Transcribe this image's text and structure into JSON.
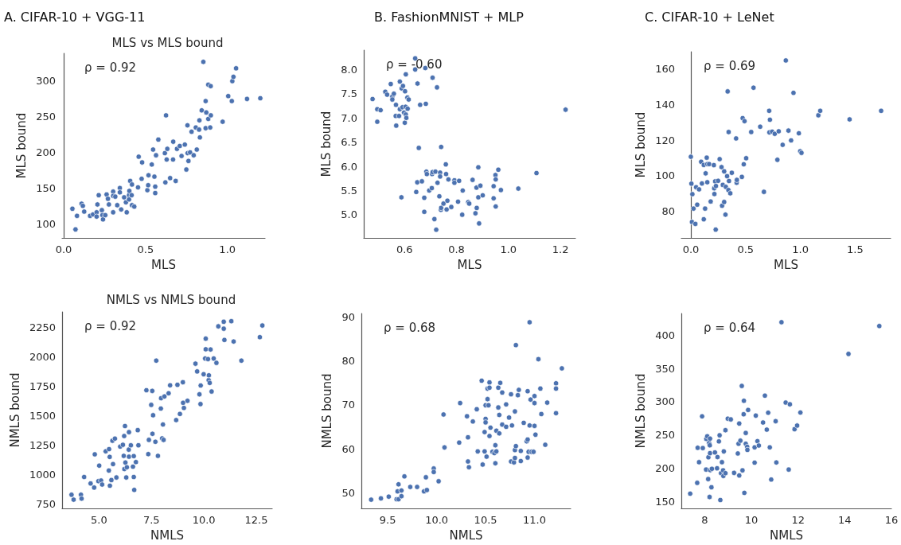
{
  "chart_data": [
    {
      "type": "scatter",
      "title": "A. CIFAR-10 + VGG-11",
      "subtitle": "MLS vs MLS bound",
      "xlabel": "MLS",
      "ylabel": "MLS bound",
      "annotations": [
        "ρ = 0.92"
      ],
      "marker": "circle",
      "xlim": [
        -0.01,
        1.23
      ],
      "xticks": [
        {
          "value": 0,
          "label": "0.0"
        },
        0.5,
        {
          "value": 1,
          "label": "1.0"
        }
      ],
      "ylim": [
        80,
        339
      ],
      "yticks": [
        100,
        150,
        200,
        250,
        300
      ],
      "x": [
        0.053,
        0.072,
        0.081,
        0.109,
        0.117,
        0.125,
        0.161,
        0.179,
        0.201,
        0.201,
        0.206,
        0.214,
        0.233,
        0.236,
        0.24,
        0.254,
        0.262,
        0.27,
        0.276,
        0.302,
        0.302,
        0.302,
        0.315,
        0.327,
        0.343,
        0.343,
        0.351,
        0.369,
        0.38,
        0.385,
        0.399,
        0.399,
        0.401,
        0.406,
        0.415,
        0.417,
        0.417,
        0.431,
        0.454,
        0.458,
        0.476,
        0.479,
        0.511,
        0.516,
        0.518,
        0.538,
        0.546,
        0.554,
        0.559,
        0.559,
        0.564,
        0.578,
        0.618,
        0.621,
        0.625,
        0.629,
        0.633,
        0.65,
        0.668,
        0.669,
        0.684,
        0.692,
        0.709,
        0.72,
        0.74,
        0.749,
        0.757,
        0.756,
        0.762,
        0.772,
        0.781,
        0.794,
        0.807,
        0.813,
        0.827,
        0.829,
        0.832,
        0.843,
        0.853,
        0.867,
        0.867,
        0.871,
        0.883,
        0.883,
        0.895,
        0.898,
        0.899,
        0.971,
        1.005,
        1.027,
        1.03,
        1.037,
        1.053,
        1.12,
        1.201
      ],
      "series": [
        {
          "color": "#4c72b0",
          "values": [
            121,
            92,
            111,
            128,
            125,
            117,
            111,
            113,
            116,
            110,
            127,
            140,
            119,
            112,
            106,
            112,
            141,
            135,
            127,
            145,
            139,
            116,
            138,
            126,
            150,
            144,
            120,
            137,
            130,
            116,
            140,
            134,
            146,
            160,
            140,
            155,
            126,
            124,
            151,
            194,
            163,
            186,
            147,
            154,
            168,
            183,
            204,
            166,
            152,
            143,
            196,
            218,
            199,
            158,
            252,
            190,
            205,
            164,
            190,
            215,
            160,
            205,
            209,
            195,
            211,
            176,
            199,
            238,
            188,
            200,
            229,
            196,
            235,
            204,
            232,
            245,
            221,
            259,
            327,
            272,
            234,
            256,
            247,
            295,
            235,
            293,
            252,
            243,
            279,
            272,
            300,
            306,
            318,
            275,
            276
          ]
        }
      ]
    },
    {
      "type": "scatter",
      "title": "B. FashionMNIST + MLP",
      "xlabel": "MLS",
      "ylabel": "MLS bound",
      "annotations": [
        "ρ = -0.60"
      ],
      "marker": "circle",
      "xlim": [
        0.443,
        1.258
      ],
      "xticks": [
        0.6,
        0.8,
        {
          "value": 1,
          "label": "1.0"
        },
        1.2
      ],
      "ylim": [
        4.52,
        8.4
      ],
      "yticks": [
        {
          "value": 5,
          "label": "5.0"
        },
        5.5,
        {
          "value": 6,
          "label": "6.0"
        },
        6.5,
        {
          "value": 7,
          "label": "7.0"
        },
        7.5,
        {
          "value": 8,
          "label": "8.0"
        }
      ],
      "x": [
        0.477,
        0.495,
        0.495,
        0.508,
        0.526,
        0.533,
        0.547,
        0.553,
        0.553,
        0.559,
        0.566,
        0.567,
        0.568,
        0.579,
        0.582,
        0.582,
        0.589,
        0.592,
        0.594,
        0.598,
        0.602,
        0.604,
        0.605,
        0.605,
        0.601,
        0.607,
        0.611,
        0.616,
        0.612,
        0.588,
        0.641,
        0.641,
        0.65,
        0.655,
        0.66,
        0.68,
        0.682,
        0.708,
        0.725,
        0.741,
        0.645,
        0.649,
        0.667,
        0.676,
        0.676,
        0.684,
        0.686,
        0.695,
        0.705,
        0.706,
        0.708,
        0.715,
        0.719,
        0.722,
        0.727,
        0.734,
        0.737,
        0.737,
        0.74,
        0.741,
        0.75,
        0.759,
        0.76,
        0.762,
        0.765,
        0.769,
        0.78,
        0.792,
        0.792,
        0.806,
        0.81,
        0.822,
        0.824,
        0.845,
        0.849,
        0.862,
        0.873,
        0.877,
        0.878,
        0.884,
        0.884,
        0.887,
        0.892,
        0.901,
        0.943,
        0.943,
        0.95,
        0.951,
        0.951,
        0.961,
        0.971,
        1.038,
        1.108,
        1.22
      ],
      "series": [
        {
          "color": "#4c72b0",
          "values": [
            7.39,
            7.18,
            6.92,
            7.16,
            7.54,
            7.48,
            7.7,
            7.44,
            7.38,
            7.5,
            7.04,
            7.27,
            6.84,
            7.04,
            7.75,
            7.18,
            7.61,
            7.22,
            7.66,
            7.11,
            7.55,
            7.23,
            7.07,
            7.9,
            6.9,
            7.0,
            7.42,
            7.38,
            7.19,
            5.36,
            8.23,
            8.0,
            7.71,
            6.38,
            7.27,
            8.03,
            7.29,
            7.83,
            7.63,
            6.4,
            5.47,
            5.67,
            5.69,
            5.35,
            5.06,
            5.89,
            5.84,
            5.5,
            5.55,
            5.84,
            5.88,
            4.91,
            5.89,
            4.69,
            5.66,
            5.38,
            5.87,
            5.79,
            5.1,
            5.14,
            5.23,
            6.04,
            5.84,
            5.11,
            5.29,
            5.73,
            5.16,
            5.71,
            5.66,
            5.27,
            5.7,
            5.0,
            5.5,
            5.26,
            5.23,
            5.72,
            5.03,
            5.56,
            5.14,
            5.98,
            5.36,
            4.82,
            5.6,
            5.4,
            5.59,
            5.34,
            5.82,
            5.73,
            5.17,
            5.93,
            5.51,
            5.54,
            5.86,
            7.17
          ]
        }
      ]
    },
    {
      "type": "scatter",
      "title": "C. CIFAR-10 + LeNet",
      "xlabel": "MLS",
      "ylabel": "MLS bound",
      "annotations": [
        "ρ = 0.69"
      ],
      "marker": "circle",
      "xlim": [
        -0.087,
        1.824
      ],
      "xticks": [
        {
          "value": 0,
          "label": "0.0"
        },
        0.5,
        {
          "value": 1,
          "label": "1.0"
        },
        1.5
      ],
      "ylim": [
        65,
        169.6
      ],
      "yticks": [
        80,
        100,
        120,
        140,
        160
      ],
      "x": [
        0.0,
        0.005,
        0.01,
        0.014,
        0.024,
        0.041,
        0.048,
        0.058,
        0.075,
        0.094,
        0.101,
        0.118,
        0.118,
        0.13,
        0.135,
        0.145,
        0.15,
        0.15,
        0.167,
        0.181,
        0.21,
        0.213,
        0.215,
        0.222,
        0.227,
        0.229,
        0.249,
        0.263,
        0.28,
        0.285,
        0.292,
        0.304,
        0.304,
        0.316,
        0.319,
        0.331,
        0.336,
        0.343,
        0.345,
        0.348,
        0.36,
        0.374,
        0.413,
        0.418,
        0.42,
        0.466,
        0.473,
        0.483,
        0.49,
        0.505,
        0.551,
        0.572,
        0.633,
        0.667,
        0.715,
        0.717,
        0.722,
        0.742,
        0.766,
        0.79,
        0.802,
        0.838,
        0.867,
        0.891,
        0.915,
        0.937,
        0.986,
        0.998,
        1.01,
        1.164,
        1.181,
        1.449,
        1.737
      ],
      "series": [
        {
          "color": "#4c72b0",
          "values": [
            110.6,
            95.5,
            74.0,
            89.6,
            81.5,
            72.9,
            93.5,
            83.7,
            92.3,
            107.8,
            95.6,
            106.0,
            75.5,
            81.5,
            101.3,
            110.1,
            106.5,
            96.3,
            106.5,
            85.5,
            105.9,
            92.9,
            89.7,
            96.8,
            69.7,
            94.2,
            97.1,
            109.3,
            104.8,
            83.1,
            94.8,
            102.4,
            85.2,
            78.1,
            93.7,
            99.7,
            147.3,
            91.9,
            124.5,
            97.0,
            90.1,
            101.6,
            120.9,
            96.0,
            97.6,
            99.3,
            132.3,
            106.4,
            130.6,
            109.8,
            124.5,
            149.4,
            127.5,
            90.9,
            136.4,
            124.3,
            131.4,
            124.7,
            123.5,
            108.9,
            124.9,
            117.3,
            164.7,
            125.3,
            119.8,
            146.5,
            123.8,
            113.7,
            112.8,
            133.9,
            136.4,
            131.6,
            136.4
          ]
        }
      ]
    },
    {
      "type": "scatter",
      "title": "NMLS vs NMLS bound",
      "xlabel": "NMLS",
      "ylabel": "NMLS bound",
      "annotations": [
        "ρ = 0.92"
      ],
      "marker": "circle",
      "xlim": [
        3.24,
        13.26
      ],
      "xticks": [
        {
          "value": 5,
          "label": "5.0"
        },
        7.5,
        {
          "value": 10,
          "label": "10.0"
        },
        12.5
      ],
      "ylim": [
        710,
        2384
      ],
      "yticks": [
        750,
        1000,
        1250,
        1500,
        1750,
        2000,
        2250
      ],
      "x": [
        3.69,
        3.79,
        4.14,
        4.17,
        4.29,
        4.6,
        4.77,
        4.8,
        4.97,
        5.01,
        5.1,
        5.15,
        5.32,
        5.47,
        5.48,
        5.51,
        5.52,
        5.59,
        5.64,
        5.67,
        5.76,
        5.83,
        6.01,
        6.14,
        6.18,
        6.2,
        6.21,
        6.24,
        6.26,
        6.3,
        6.33,
        6.42,
        6.43,
        6.43,
        6.52,
        6.62,
        6.66,
        6.66,
        6.68,
        6.76,
        6.85,
        6.88,
        7.26,
        7.35,
        7.38,
        7.49,
        7.54,
        7.55,
        7.58,
        7.69,
        7.73,
        7.81,
        7.95,
        7.96,
        8.01,
        8.05,
        8.08,
        8.12,
        8.32,
        8.39,
        8.68,
        8.74,
        8.86,
        9.0,
        9.01,
        9.05,
        9.22,
        9.6,
        9.68,
        9.79,
        9.84,
        9.85,
        9.99,
        10.06,
        10.09,
        10.09,
        10.2,
        10.23,
        10.24,
        10.28,
        10.32,
        10.37,
        10.47,
        10.6,
        10.69,
        10.95,
        10.95,
        10.98,
        11.31,
        11.42,
        11.79,
        12.67,
        12.79
      ],
      "series": [
        {
          "color": "#4c72b0",
          "values": [
            827,
            785,
            827,
            794,
            978,
            923,
            888,
            1171,
            943,
            1075,
            948,
            914,
            1197,
            1033,
            1215,
            1149,
            904,
            952,
            1287,
            1088,
            1305,
            974,
            1237,
            1252,
            1158,
            1327,
            1046,
            1412,
            1101,
            974,
            1061,
            1211,
            1151,
            1360,
            1248,
            1066,
            1156,
            978,
            868,
            1105,
            1377,
            1248,
            1717,
            1173,
            1294,
            1592,
            1711,
            1346,
            1504,
            1278,
            1969,
            1158,
            1561,
            1649,
            1307,
            1425,
            1294,
            1664,
            1691,
            1759,
            1463,
            1763,
            1515,
            1785,
            1610,
            1566,
            1627,
            1943,
            1877,
            1682,
            1599,
            1757,
            1853,
            1987,
            2156,
            2066,
            1982,
            1803,
            1844,
            1779,
            2064,
            1706,
            1987,
            1950,
            2261,
            2300,
            2241,
            2145,
            2305,
            2132,
            1969,
            2169,
            2268
          ]
        }
      ]
    },
    {
      "type": "scatter",
      "xlabel": "NMLS",
      "ylabel": "NMLS bound",
      "annotations": [
        "ρ = 0.68"
      ],
      "marker": "circle",
      "xlim": [
        9.23,
        11.37
      ],
      "xticks": [
        9.5,
        {
          "value": 10,
          "label": "10.0"
        },
        10.5,
        {
          "value": 11,
          "label": "11.0"
        }
      ],
      "ylim": [
        46.4,
        90.8
      ],
      "yticks": [
        50,
        60,
        70,
        80,
        90
      ],
      "x": [
        9.33,
        9.43,
        9.51,
        9.59,
        9.61,
        9.6,
        9.61,
        9.64,
        9.64,
        9.67,
        9.73,
        9.8,
        9.87,
        9.89,
        9.9,
        9.97,
        9.97,
        10.02,
        10.07,
        10.08,
        10.23,
        10.24,
        10.31,
        10.32,
        10.32,
        10.33,
        10.37,
        10.41,
        10.42,
        10.46,
        10.47,
        10.49,
        10.49,
        10.5,
        10.5,
        10.5,
        10.51,
        10.52,
        10.52,
        10.53,
        10.54,
        10.54,
        10.54,
        10.55,
        10.57,
        10.59,
        10.6,
        10.6,
        10.61,
        10.61,
        10.63,
        10.63,
        10.64,
        10.64,
        10.65,
        10.67,
        10.67,
        10.71,
        10.71,
        10.74,
        10.76,
        10.76,
        10.77,
        10.79,
        10.8,
        10.8,
        10.8,
        10.81,
        10.81,
        10.83,
        10.84,
        10.86,
        10.86,
        10.89,
        10.92,
        10.93,
        10.93,
        10.93,
        10.94,
        10.95,
        10.95,
        10.96,
        10.97,
        10.99,
        11.0,
        11.0,
        11.0,
        11.01,
        11.04,
        11.06,
        11.07,
        11.11,
        11.13,
        11.22,
        11.22,
        11.22,
        11.28
      ],
      "series": [
        {
          "color": "#4c72b0",
          "values": [
            48.4,
            48.7,
            49.1,
            48.5,
            48.5,
            50.3,
            51.9,
            50.5,
            49.2,
            53.7,
            51.3,
            51.3,
            50.3,
            53.5,
            50.6,
            55.5,
            54.7,
            52.6,
            67.8,
            60.3,
            61.4,
            70.4,
            67.4,
            62.6,
            57.1,
            55.8,
            66.2,
            69.0,
            59.4,
            75.5,
            56.4,
            63.8,
            59.4,
            69.9,
            66.8,
            66.0,
            58.2,
            73.7,
            71.3,
            69.9,
            75.1,
            73.9,
            62.9,
            64.8,
            59.3,
            59.0,
            60.8,
            56.7,
            64.1,
            59.4,
            73.9,
            69.4,
            67.7,
            63.5,
            75.0,
            65.5,
            72.8,
            65.0,
            70.1,
            67.1,
            57.1,
            72.4,
            65.3,
            56.9,
            68.5,
            57.9,
            59.7,
            60.6,
            83.6,
            72.2,
            73.4,
            59.5,
            57.2,
            65.9,
            61.7,
            73.1,
            62.1,
            58.0,
            59.3,
            65.3,
            88.8,
            71.2,
            59.3,
            59.3,
            72.0,
            70.4,
            65.2,
            63.2,
            80.4,
            73.7,
            67.9,
            60.9,
            70.5,
            68.1,
            74.9,
            73.7,
            78.3
          ]
        }
      ]
    },
    {
      "type": "scatter",
      "xlabel": "NMLS",
      "ylabel": "NMLS bound",
      "annotations": [
        "ρ = 0.64"
      ],
      "marker": "circle",
      "xlim": [
        7.0,
        16.0
      ],
      "xticks": [
        8,
        10,
        12,
        14,
        16
      ],
      "ylim": [
        139.6,
        432.7
      ],
      "yticks": [
        150,
        200,
        250,
        300,
        350,
        400
      ],
      "x": [
        7.38,
        7.68,
        7.7,
        7.76,
        7.89,
        7.92,
        8.06,
        8.07,
        8.11,
        8.15,
        8.16,
        8.19,
        8.21,
        8.22,
        8.23,
        8.23,
        8.24,
        8.29,
        8.31,
        8.44,
        8.53,
        8.55,
        8.61,
        8.64,
        8.67,
        8.7,
        8.74,
        8.79,
        8.8,
        8.82,
        8.89,
        8.89,
        8.99,
        9.12,
        9.26,
        9.42,
        9.45,
        9.48,
        9.48,
        9.53,
        9.59,
        9.62,
        9.67,
        9.68,
        9.7,
        9.76,
        9.76,
        9.82,
        9.83,
        9.86,
        10.14,
        10.14,
        10.19,
        10.26,
        10.32,
        10.5,
        10.58,
        10.66,
        10.72,
        10.79,
        10.85,
        11.04,
        11.07,
        11.29,
        11.47,
        11.6,
        11.65,
        11.85,
        11.96,
        12.1,
        14.16,
        15.48
      ],
      "series": [
        {
          "color": "#4c72b0",
          "values": [
            161.9,
            178.1,
            230.8,
            209.2,
            278.1,
            230.4,
            198.1,
            244.2,
            248.1,
            183.8,
            216.5,
            238.1,
            156.9,
            234.6,
            244.6,
            222.7,
            197.3,
            171.5,
            199.2,
            223.8,
            200.0,
            216.9,
            240.4,
            249.6,
            152.3,
            192.7,
            209.2,
            196.9,
            188.5,
            225.4,
            257.3,
            192.7,
            274.6,
            273.5,
            193.1,
            222.3,
            236.9,
            267.3,
            189.2,
            241.5,
            323.8,
            196.9,
            281.2,
            301.5,
            163.1,
            253.1,
            236.9,
            232.3,
            227.7,
            287.7,
            231.5,
            208.5,
            279.2,
            240.8,
            234.2,
            268.8,
            309.2,
            258.1,
            283.5,
            231.5,
            183.1,
            270.8,
            208.8,
            419.6,
            298.8,
            198.1,
            296.2,
            258.8,
            264.2,
            283.8,
            371.9,
            413.8
          ]
        }
      ]
    }
  ]
}
